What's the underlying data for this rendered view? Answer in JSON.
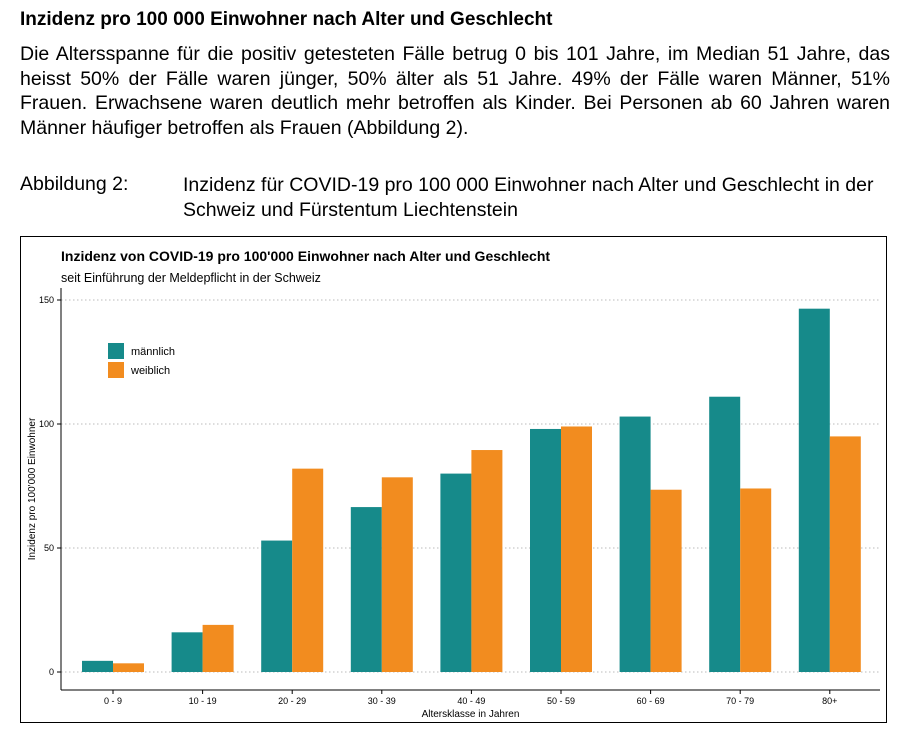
{
  "document": {
    "heading": "Inzidenz pro 100 000 Einwohner nach Alter und Geschlecht",
    "paragraph": "Die Altersspanne für die positiv getesteten Fälle betrug 0 bis 101 Jahre, im Median 51 Jahre, das heisst 50% der Fälle waren jünger, 50% älter als 51 Jahre. 49% der Fälle waren Männer, 51% Frauen. Erwachsene waren deutlich mehr betroffen als Kinder. Bei Personen ab 60 Jah­ren waren Männer häufiger betroffen als Frauen (Abbildung 2).",
    "figure_label": "Abbildung 2:",
    "figure_caption": "Inzidenz für COVID-19 pro 100 000 Einwohner nach Alter und Geschlecht in der Schweiz und Fürstentum Liechtenstein"
  },
  "colors": {
    "maennlich": "#168A8A",
    "weiblich": "#F28C1F",
    "grid": "#BBBBBB"
  },
  "chart_data": {
    "type": "bar",
    "title": "Inzidenz von COVID-19 pro 100'000 Einwohner nach Alter und Geschlecht",
    "subtitle": "seit Einführung der Meldepflicht in der Schweiz",
    "xlabel": "Altersklasse in Jahren",
    "ylabel": "Inzidenz pro 100'000 Einwohner",
    "ylim": [
      0,
      150
    ],
    "yticks": [
      0,
      50,
      100,
      150
    ],
    "grid": true,
    "legend_position": "top-left",
    "categories": [
      "0 - 9",
      "10 - 19",
      "20 - 29",
      "30 - 39",
      "40 - 49",
      "50 - 59",
      "60 - 69",
      "70 - 79",
      "80+"
    ],
    "series": [
      {
        "name": "männlich",
        "color_key": "maennlich",
        "values": [
          4.5,
          16,
          53,
          66.5,
          80,
          98,
          103,
          111,
          146.5
        ]
      },
      {
        "name": "weiblich",
        "color_key": "weiblich",
        "values": [
          3.5,
          19,
          82,
          78.5,
          89.5,
          99,
          73.5,
          74,
          95
        ]
      }
    ]
  }
}
